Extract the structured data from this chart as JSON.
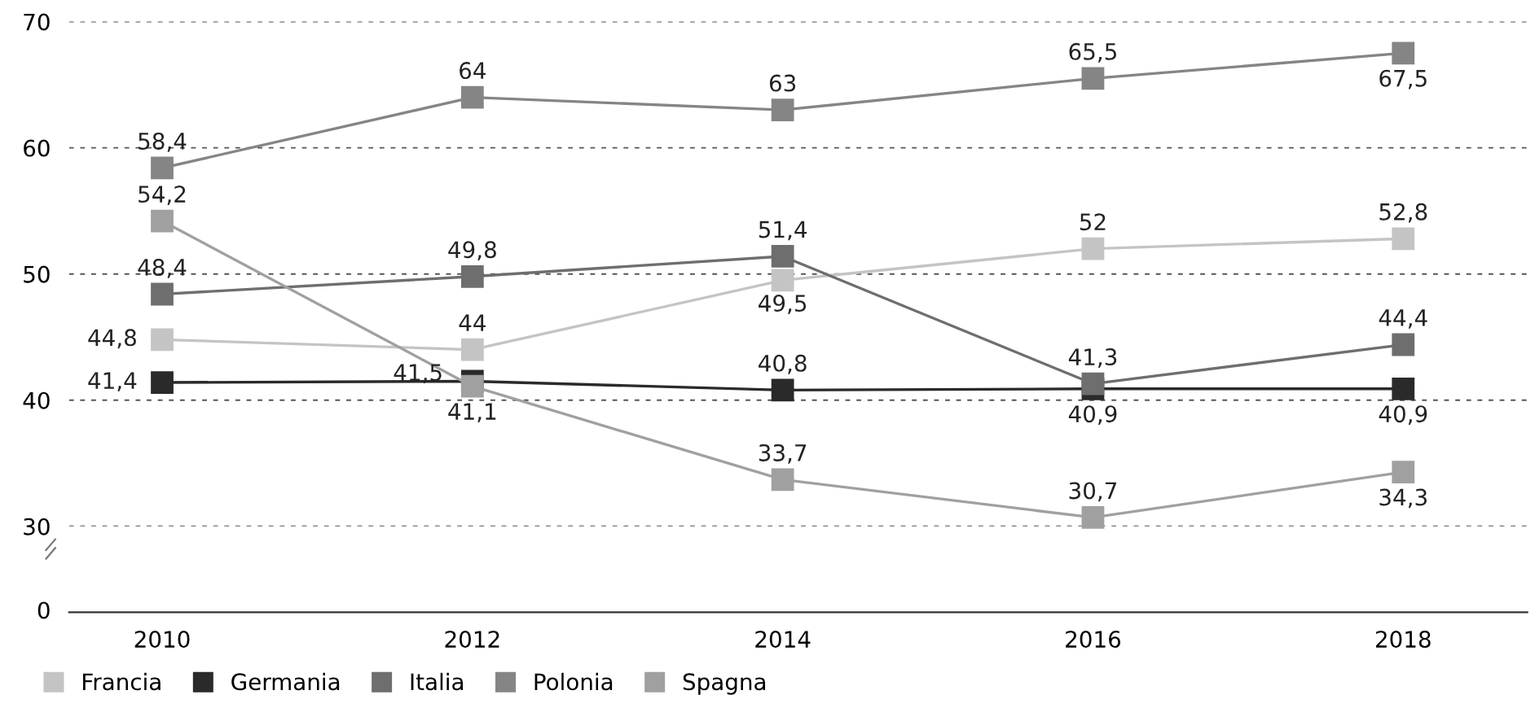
{
  "chart_data": {
    "type": "line",
    "x": [
      2010,
      2012,
      2014,
      2016,
      2018
    ],
    "xlim": [
      2009.4,
      2018.8
    ],
    "xticks": [
      2010,
      2012,
      2014,
      2016,
      2018
    ],
    "ylim": [
      30,
      70
    ],
    "yticks": [
      30,
      40,
      50,
      60,
      70
    ],
    "annotations": [
      "0"
    ],
    "grid": "y",
    "legend": "bottom left",
    "marker": "square",
    "line_style": "solid",
    "series": [
      {
        "name": "Francia",
        "color": "#c4c4c4",
        "values": [
          44.8,
          44,
          49.5,
          52,
          52.8
        ],
        "value_labels": [
          "44,8",
          "44",
          "49,5",
          "52",
          "52,8"
        ]
      },
      {
        "name": "Germania",
        "color": "#2a2a2a",
        "values": [
          41.4,
          41.5,
          40.8,
          40.9,
          40.9
        ],
        "value_labels": [
          "41,4",
          "41,5",
          "40,8",
          "40,9",
          "40,9"
        ]
      },
      {
        "name": "Italia",
        "color": "#6e6e6e",
        "values": [
          48.4,
          49.8,
          51.4,
          41.3,
          44.4
        ],
        "value_labels": [
          "48,4",
          "49,8",
          "51,4",
          "41,3",
          "44,4"
        ]
      },
      {
        "name": "Polonia",
        "color": "#858585",
        "values": [
          58.4,
          64,
          63,
          65.5,
          67.5
        ],
        "value_labels": [
          "58,4",
          "64",
          "63",
          "65,5",
          "67,5"
        ]
      },
      {
        "name": "Spagna",
        "color": "#a0a0a0",
        "values": [
          54.2,
          41.1,
          33.7,
          30.7,
          34.3
        ],
        "value_labels": [
          "54,2",
          "41,1",
          "33,7",
          "30,7",
          "34,3"
        ]
      }
    ]
  }
}
